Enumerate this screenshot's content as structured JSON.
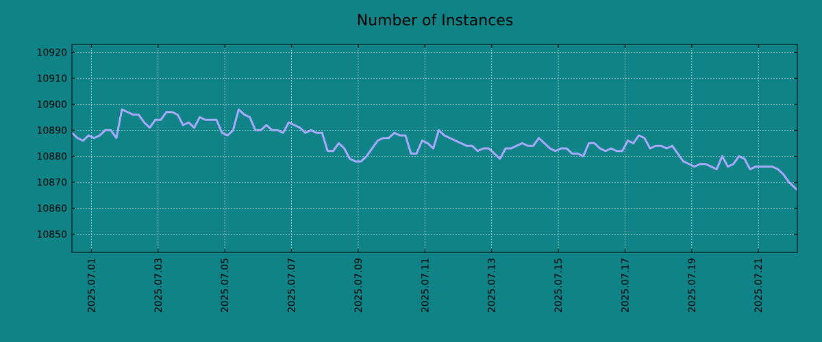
{
  "chart_data": {
    "type": "line",
    "title": "Number of Instances",
    "xlabel": "",
    "ylabel": "",
    "ylim": [
      10843,
      10923
    ],
    "yticks": [
      10850,
      10860,
      10870,
      10880,
      10890,
      10900,
      10910,
      10920
    ],
    "xlim": [
      "2025-06-30 10:00",
      "2025-07-22 04:00"
    ],
    "xticks": [
      "2025.07.01",
      "2025.07.03",
      "2025.07.05",
      "2025.07.07",
      "2025.07.09",
      "2025.07.11",
      "2025.07.13",
      "2025.07.15",
      "2025.07.17",
      "2025.07.19",
      "2025.07.21"
    ],
    "grid": true,
    "colors": {
      "background": "#108387",
      "line": "#a8aaff",
      "grid": "#b8dcdc",
      "axes": "#000000"
    },
    "series": [
      {
        "x": [
          "2025-06-30 10:00",
          "2025-06-30 14:00",
          "2025-06-30 18:00",
          "2025-06-30 22:00",
          "2025-07-01 02:00",
          "2025-07-01 06:00",
          "2025-07-01 10:00",
          "2025-07-01 14:00",
          "2025-07-01 18:00",
          "2025-07-01 22:00",
          "2025-07-02 02:00",
          "2025-07-02 06:00",
          "2025-07-02 10:00",
          "2025-07-02 14:00",
          "2025-07-02 18:00",
          "2025-07-02 22:00",
          "2025-07-03 02:00",
          "2025-07-03 06:00",
          "2025-07-03 10:00",
          "2025-07-03 14:00",
          "2025-07-03 18:00",
          "2025-07-03 22:00",
          "2025-07-04 02:00",
          "2025-07-04 06:00",
          "2025-07-04 10:00",
          "2025-07-04 14:00",
          "2025-07-04 18:00",
          "2025-07-04 22:00",
          "2025-07-05 02:00",
          "2025-07-05 06:00",
          "2025-07-05 10:00",
          "2025-07-05 14:00",
          "2025-07-05 18:00",
          "2025-07-05 22:00",
          "2025-07-06 02:00",
          "2025-07-06 06:00",
          "2025-07-06 10:00",
          "2025-07-06 14:00",
          "2025-07-06 18:00",
          "2025-07-06 22:00",
          "2025-07-07 02:00",
          "2025-07-07 06:00",
          "2025-07-07 10:00",
          "2025-07-07 14:00",
          "2025-07-07 18:00",
          "2025-07-07 22:00",
          "2025-07-08 02:00",
          "2025-07-08 06:00",
          "2025-07-08 10:00",
          "2025-07-08 14:00",
          "2025-07-08 18:00",
          "2025-07-08 22:00",
          "2025-07-09 02:00",
          "2025-07-09 06:00",
          "2025-07-09 10:00",
          "2025-07-09 14:00",
          "2025-07-09 18:00",
          "2025-07-09 22:00",
          "2025-07-10 02:00",
          "2025-07-10 06:00",
          "2025-07-10 10:00",
          "2025-07-10 14:00",
          "2025-07-10 18:00",
          "2025-07-10 22:00",
          "2025-07-11 02:00",
          "2025-07-11 06:00",
          "2025-07-11 10:00",
          "2025-07-11 14:00",
          "2025-07-11 18:00",
          "2025-07-11 22:00",
          "2025-07-12 02:00",
          "2025-07-12 06:00",
          "2025-07-12 10:00",
          "2025-07-12 14:00",
          "2025-07-12 18:00",
          "2025-07-12 22:00",
          "2025-07-13 02:00",
          "2025-07-13 06:00",
          "2025-07-13 10:00",
          "2025-07-13 14:00",
          "2025-07-13 18:00",
          "2025-07-13 22:00",
          "2025-07-14 02:00",
          "2025-07-14 06:00",
          "2025-07-14 10:00",
          "2025-07-14 14:00",
          "2025-07-14 18:00",
          "2025-07-14 22:00",
          "2025-07-15 02:00",
          "2025-07-15 06:00",
          "2025-07-15 10:00",
          "2025-07-15 14:00",
          "2025-07-15 18:00",
          "2025-07-15 22:00",
          "2025-07-16 02:00",
          "2025-07-16 06:00",
          "2025-07-16 10:00",
          "2025-07-16 14:00",
          "2025-07-16 18:00",
          "2025-07-16 22:00",
          "2025-07-17 02:00",
          "2025-07-17 06:00",
          "2025-07-17 10:00",
          "2025-07-17 14:00",
          "2025-07-17 18:00",
          "2025-07-17 22:00",
          "2025-07-18 02:00",
          "2025-07-18 06:00",
          "2025-07-18 10:00",
          "2025-07-18 14:00",
          "2025-07-18 18:00",
          "2025-07-18 22:00",
          "2025-07-19 02:00",
          "2025-07-19 06:00",
          "2025-07-19 10:00",
          "2025-07-19 14:00",
          "2025-07-19 18:00",
          "2025-07-19 22:00",
          "2025-07-20 02:00",
          "2025-07-20 06:00",
          "2025-07-20 10:00",
          "2025-07-20 14:00",
          "2025-07-20 18:00",
          "2025-07-20 22:00",
          "2025-07-21 02:00",
          "2025-07-21 06:00",
          "2025-07-21 10:00",
          "2025-07-21 14:00",
          "2025-07-21 18:00",
          "2025-07-21 22:00",
          "2025-07-22 02:00",
          "2025-07-22 04:00"
        ],
        "y": [
          10889,
          10887,
          10886,
          10888,
          10887,
          10888,
          10890,
          10890,
          10887,
          10898,
          10897,
          10896,
          10896,
          10893,
          10891,
          10894,
          10894,
          10897,
          10897,
          10896,
          10892,
          10893,
          10891,
          10895,
          10894,
          10894,
          10894,
          10889,
          10888,
          10890,
          10898,
          10896,
          10895,
          10890,
          10890,
          10892,
          10890,
          10890,
          10889,
          10893,
          10892,
          10891,
          10889,
          10890,
          10889,
          10889,
          10882,
          10882,
          10885,
          10883,
          10879,
          10878,
          10878,
          10880,
          10883,
          10886,
          10887,
          10887,
          10889,
          10888,
          10888,
          10881,
          10881,
          10886,
          10885,
          10883,
          10890,
          10888,
          10887,
          10886,
          10885,
          10884,
          10884,
          10882,
          10883,
          10883,
          10881,
          10879,
          10883,
          10883,
          10884,
          10885,
          10884,
          10884,
          10887,
          10885,
          10883,
          10882,
          10883,
          10883,
          10881,
          10881,
          10880,
          10885,
          10885,
          10883,
          10882,
          10883,
          10882,
          10882,
          10886,
          10885,
          10888,
          10887,
          10883,
          10884,
          10884,
          10883,
          10884,
          10881,
          10878,
          10877,
          10876,
          10877,
          10877,
          10876,
          10875,
          10880,
          10876,
          10877,
          10880,
          10879,
          10875,
          10876,
          10876,
          10876,
          10876,
          10875,
          10873,
          10870,
          10868,
          10867
        ]
      }
    ]
  }
}
